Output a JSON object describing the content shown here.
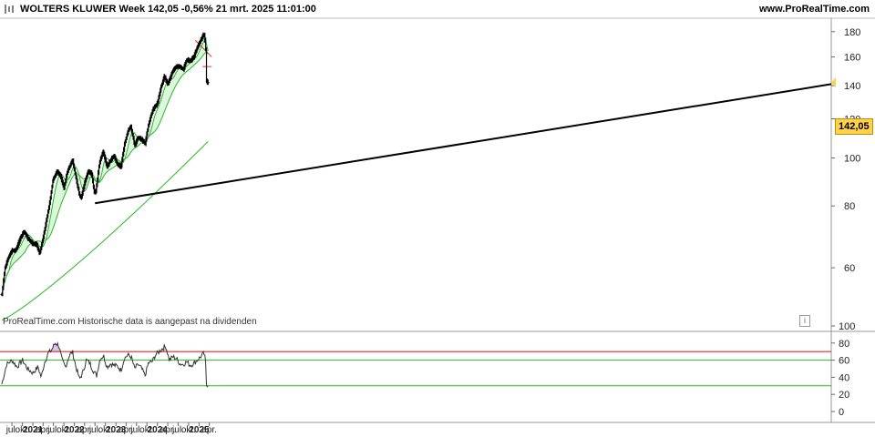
{
  "header": {
    "title": "WOLTERS KLUWER Week 142,05 -0,56% 21 mrt. 2025 11:01:00",
    "site": "www.ProRealTime.com"
  },
  "note": "ProRealTime.com  Historische data is aangepast na dividenden",
  "price_tag": "142,05",
  "info_glyph": "i",
  "colors": {
    "bars": "#000000",
    "ma_fast": "#22bb22",
    "ma_mid": "#22bb22",
    "ma_slow": "#22bb22",
    "ma_fill": "#ddf7dd",
    "trendline": "#000000",
    "rsi_line": "#333333",
    "rsi_upper": "#ee2222",
    "rsi_mid": "#22bb22",
    "rsi_over_fill": "#c9b8ee",
    "price_tag_bg": "#ffd24d"
  },
  "chart_data": [
    {
      "type": "line",
      "panel": "price",
      "ylim": [
        45,
        190
      ],
      "y_ticks": [
        "180",
        "160",
        "140",
        "120",
        "100",
        "80",
        "60"
      ],
      "y_tick_values": [
        180,
        160,
        140,
        120,
        100,
        80,
        60
      ],
      "x_ticks": [
        "jul.",
        "okt.",
        "2021",
        "apr.",
        "jul.",
        "okt.",
        "2022",
        "apr.",
        "jul.",
        "okt.",
        "2023",
        "apr.",
        "jul.",
        "okt.",
        "2024",
        "apr.",
        "jul.",
        "okt.",
        "2025",
        "apr."
      ],
      "x_tick_dates": [
        "2020-07-01",
        "2020-10-01",
        "2021-01-01",
        "2021-04-01",
        "2021-07-01",
        "2021-10-01",
        "2022-01-01",
        "2022-04-01",
        "2022-07-01",
        "2022-10-01",
        "2023-01-01",
        "2023-04-01",
        "2023-07-01",
        "2023-10-01",
        "2024-01-01",
        "2024-04-01",
        "2024-07-01",
        "2024-10-01",
        "2025-01-01",
        "2025-04-01"
      ],
      "x_bold": [
        "2021",
        "2022",
        "2023",
        "2024",
        "2025"
      ],
      "last_price": 142.05,
      "price_anchors": [
        [
          "2020-04-03",
          53
        ],
        [
          "2020-05-01",
          60
        ],
        [
          "2020-06-01",
          63
        ],
        [
          "2020-07-01",
          65
        ],
        [
          "2020-08-01",
          65
        ],
        [
          "2020-09-15",
          69
        ],
        [
          "2020-10-15",
          71
        ],
        [
          "2020-11-15",
          69
        ],
        [
          "2021-01-01",
          67
        ],
        [
          "2021-02-01",
          67
        ],
        [
          "2021-03-01",
          64
        ],
        [
          "2021-04-01",
          69
        ],
        [
          "2021-05-01",
          75
        ],
        [
          "2021-06-01",
          82
        ],
        [
          "2021-06-25",
          90
        ],
        [
          "2021-08-01",
          94
        ],
        [
          "2021-09-01",
          92
        ],
        [
          "2021-10-01",
          87
        ],
        [
          "2021-11-01",
          94
        ],
        [
          "2021-12-15",
          99
        ],
        [
          "2022-01-15",
          91
        ],
        [
          "2022-02-15",
          84
        ],
        [
          "2022-03-01",
          83
        ],
        [
          "2022-04-01",
          89
        ],
        [
          "2022-05-01",
          94
        ],
        [
          "2022-06-01",
          93
        ],
        [
          "2022-06-25",
          85
        ],
        [
          "2022-07-10",
          86
        ],
        [
          "2022-08-10",
          98
        ],
        [
          "2022-09-10",
          103
        ],
        [
          "2022-10-15",
          96
        ],
        [
          "2022-11-15",
          99
        ],
        [
          "2022-12-15",
          101
        ],
        [
          "2023-01-15",
          97
        ],
        [
          "2023-02-15",
          96
        ],
        [
          "2023-03-15",
          106
        ],
        [
          "2023-04-15",
          113
        ],
        [
          "2023-05-10",
          116
        ],
        [
          "2023-06-15",
          106
        ],
        [
          "2023-07-15",
          110
        ],
        [
          "2023-08-15",
          109
        ],
        [
          "2023-09-15",
          107
        ],
        [
          "2023-10-15",
          117
        ],
        [
          "2023-11-20",
          125
        ],
        [
          "2024-01-01",
          129
        ],
        [
          "2024-02-01",
          139
        ],
        [
          "2024-03-01",
          146
        ],
        [
          "2024-04-01",
          141
        ],
        [
          "2024-05-15",
          150
        ],
        [
          "2024-06-15",
          153
        ],
        [
          "2024-07-15",
          153
        ],
        [
          "2024-08-15",
          151
        ],
        [
          "2024-09-15",
          158
        ],
        [
          "2024-10-15",
          157
        ],
        [
          "2024-11-15",
          160
        ],
        [
          "2024-12-15",
          167
        ],
        [
          "2025-01-15",
          173
        ],
        [
          "2025-02-12",
          178
        ],
        [
          "2025-02-27",
          170
        ],
        [
          "2025-03-06",
          143
        ],
        [
          "2025-03-21",
          142
        ]
      ],
      "ma_short_last": 160,
      "ma_mid_last": 153,
      "ma_long_range": [
        47,
        108
      ],
      "trendline": [
        [
          "2022-07-01",
          81
        ],
        [
          "2025-04-01",
          141
        ]
      ]
    },
    {
      "type": "line",
      "panel": "rsi",
      "ylim": [
        0,
        100
      ],
      "y_ticks": [
        "100",
        "80",
        "60",
        "40",
        "20",
        "0"
      ],
      "y_tick_values": [
        100,
        80,
        60,
        40,
        20,
        0
      ],
      "levels": [
        70,
        60,
        30
      ],
      "rsi_anchors": [
        [
          "2020-04-03",
          32
        ],
        [
          "2020-05-15",
          55
        ],
        [
          "2020-07-01",
          60
        ],
        [
          "2020-08-15",
          52
        ],
        [
          "2020-10-01",
          60
        ],
        [
          "2020-11-15",
          50
        ],
        [
          "2021-01-01",
          45
        ],
        [
          "2021-02-15",
          52
        ],
        [
          "2021-03-15",
          40
        ],
        [
          "2021-04-15",
          58
        ],
        [
          "2021-05-15",
          68
        ],
        [
          "2021-06-15",
          72
        ],
        [
          "2021-07-15",
          80
        ],
        [
          "2021-08-15",
          78
        ],
        [
          "2021-09-15",
          60
        ],
        [
          "2021-10-15",
          52
        ],
        [
          "2021-11-15",
          65
        ],
        [
          "2021-12-15",
          70
        ],
        [
          "2022-01-15",
          52
        ],
        [
          "2022-02-15",
          38
        ],
        [
          "2022-03-15",
          45
        ],
        [
          "2022-04-15",
          60
        ],
        [
          "2022-05-15",
          57
        ],
        [
          "2022-06-15",
          48
        ],
        [
          "2022-07-15",
          42
        ],
        [
          "2022-08-15",
          62
        ],
        [
          "2022-09-15",
          65
        ],
        [
          "2022-10-15",
          52
        ],
        [
          "2022-11-15",
          56
        ],
        [
          "2022-12-15",
          54
        ],
        [
          "2023-01-15",
          53
        ],
        [
          "2023-02-15",
          48
        ],
        [
          "2023-03-15",
          62
        ],
        [
          "2023-04-15",
          66
        ],
        [
          "2023-05-15",
          64
        ],
        [
          "2023-06-15",
          50
        ],
        [
          "2023-07-15",
          55
        ],
        [
          "2023-08-15",
          50
        ],
        [
          "2023-09-15",
          42
        ],
        [
          "2023-10-15",
          57
        ],
        [
          "2023-11-15",
          58
        ],
        [
          "2023-12-15",
          66
        ],
        [
          "2024-01-15",
          70
        ],
        [
          "2024-02-15",
          74
        ],
        [
          "2024-03-15",
          76
        ],
        [
          "2024-04-15",
          60
        ],
        [
          "2024-05-15",
          64
        ],
        [
          "2024-06-15",
          62
        ],
        [
          "2024-07-15",
          56
        ],
        [
          "2024-08-15",
          55
        ],
        [
          "2024-09-15",
          58
        ],
        [
          "2024-10-15",
          54
        ],
        [
          "2024-11-15",
          56
        ],
        [
          "2024-12-15",
          60
        ],
        [
          "2025-01-15",
          64
        ],
        [
          "2025-02-12",
          68
        ],
        [
          "2025-02-27",
          60
        ],
        [
          "2025-03-06",
          31
        ],
        [
          "2025-03-21",
          32
        ]
      ]
    }
  ]
}
